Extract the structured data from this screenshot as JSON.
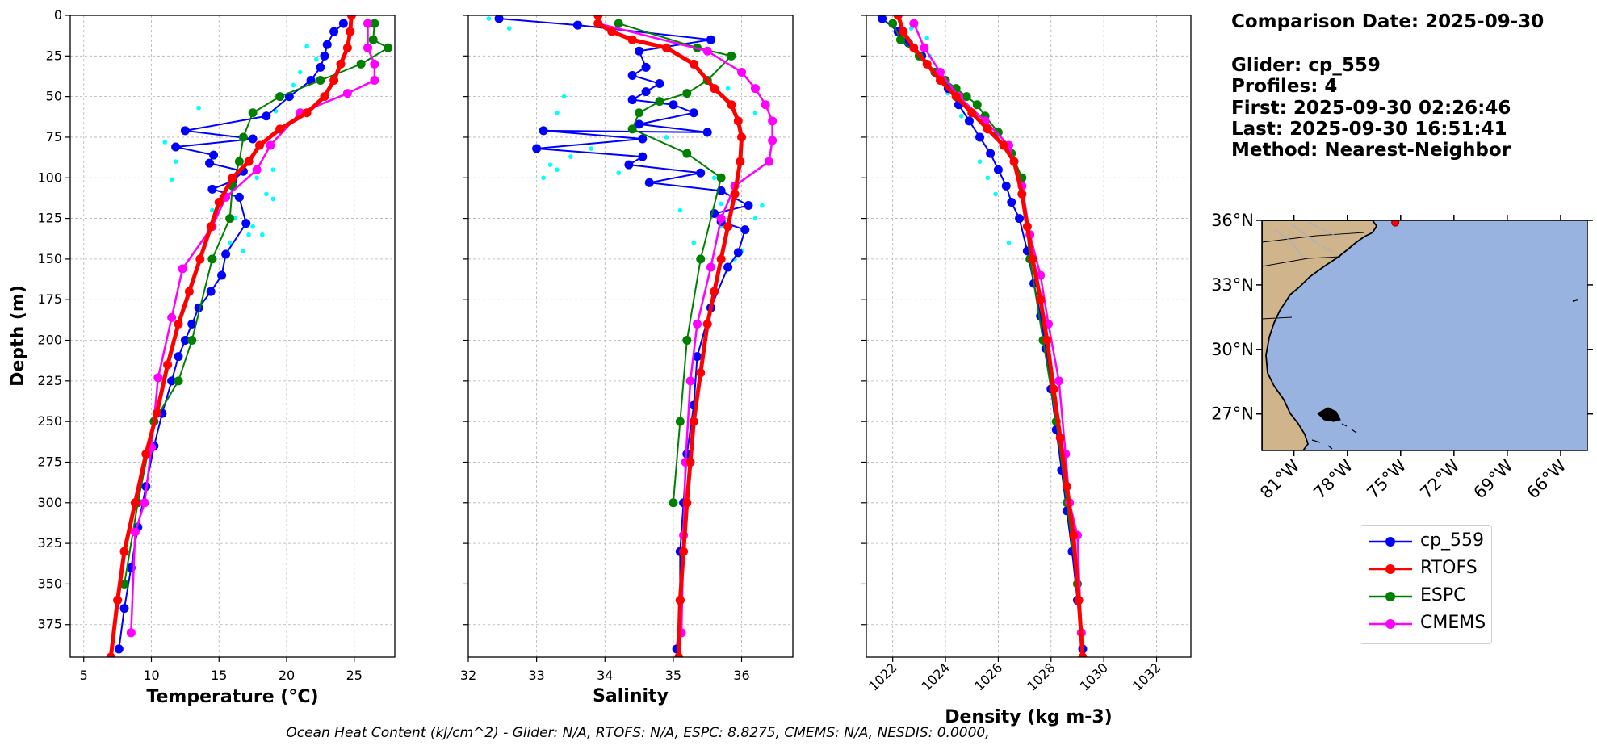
{
  "info": {
    "comparison_date": "Comparison Date: 2025-09-30",
    "glider": "Glider: cp_559",
    "profiles": "Profiles: 4",
    "first": "First: 2025-09-30 02:26:46",
    "last": "Last: 2025-09-30 16:51:41",
    "method": "Method: Nearest-Neighbor"
  },
  "footer": "Ocean Heat Content (kJ/cm^2) - Glider: N/A,  RTOFS: N/A,  ESPC: 8.8275,  CMEMS: N/A,  NESDIS: 0.0000,",
  "colors": {
    "glider": "#0000ff",
    "glider_raw": "#00ffff",
    "rtofs": "#ff0000",
    "espc": "#008000",
    "cmems": "#ff00ff",
    "ocean": "#99b3e0",
    "land": "#d0b48c"
  },
  "legend": [
    {
      "label": "cp_559",
      "color": "#0000ff"
    },
    {
      "label": "RTOFS",
      "color": "#ff0000"
    },
    {
      "label": "ESPC",
      "color": "#008000"
    },
    {
      "label": "CMEMS",
      "color": "#ff00ff"
    }
  ],
  "chart_data": [
    {
      "type": "line",
      "xlabel": "Temperature (°C)",
      "ylabel": "Depth (m)",
      "xlim": [
        4,
        28
      ],
      "ylim": [
        395,
        0
      ],
      "xticks": [
        5,
        10,
        15,
        20,
        25
      ],
      "yticks": [
        0,
        25,
        50,
        75,
        100,
        125,
        150,
        175,
        200,
        225,
        250,
        275,
        300,
        325,
        350,
        375
      ],
      "grid": true,
      "series": [
        {
          "name": "cp_559",
          "marker": true,
          "x": [
            24.2,
            23.5,
            23.0,
            22.8,
            22.5,
            21.8,
            20.2,
            18.5,
            12.5,
            17.5,
            11.8,
            14.6,
            14.3,
            16.8,
            16.0,
            14.5,
            16.5,
            17.0,
            15.5,
            15.2,
            14.4,
            13.5,
            13.0,
            12.5,
            12.0,
            11.5,
            10.8,
            10.2,
            9.6,
            9.0,
            8.5,
            8.0,
            7.6
          ],
          "y": [
            5,
            10,
            18,
            25,
            32,
            40,
            50,
            62,
            71,
            76,
            81,
            86,
            91,
            96,
            102,
            107,
            112,
            128,
            147,
            160,
            170,
            180,
            190,
            200,
            210,
            225,
            245,
            265,
            290,
            315,
            340,
            365,
            390
          ]
        },
        {
          "name": "RTOFS",
          "marker": true,
          "x": [
            24.8,
            24.7,
            24.5,
            24.0,
            23.5,
            22.8,
            21.5,
            19.5,
            18.0,
            17.2,
            16.0,
            15.0,
            14.4,
            13.6,
            12.8,
            12.0,
            11.2,
            10.4,
            9.6,
            8.8,
            8.0,
            7.5,
            7.0
          ],
          "y": [
            0,
            10,
            20,
            30,
            40,
            50,
            60,
            70,
            80,
            90,
            100,
            115,
            130,
            150,
            170,
            190,
            215,
            245,
            270,
            300,
            330,
            360,
            395
          ]
        },
        {
          "name": "ESPC",
          "marker": true,
          "x": [
            26.5,
            26.4,
            27.5,
            25.5,
            22.5,
            19.5,
            17.5,
            16.8,
            16.5,
            16.0,
            15.8,
            14.5,
            13.0,
            12.0,
            10.2,
            9.0,
            8.0
          ],
          "y": [
            5,
            15,
            20,
            30,
            40,
            50,
            60,
            75,
            90,
            105,
            125,
            150,
            200,
            225,
            250,
            300,
            350
          ]
        },
        {
          "name": "CMEMS",
          "marker": true,
          "x": [
            26.0,
            26.0,
            26.5,
            26.5,
            24.5,
            21.0,
            18.8,
            17.8,
            15.5,
            14.5,
            12.3,
            11.5,
            10.5,
            10.0,
            9.5,
            8.8,
            8.5
          ],
          "y": [
            5,
            20,
            30,
            40,
            48,
            60,
            80,
            95,
            112,
            130,
            156,
            186,
            223,
            266,
            300,
            318,
            380
          ]
        },
        {
          "name": "cp_559 raw",
          "marker": true,
          "line": false,
          "x": [
            21.5,
            22.2,
            21.0,
            20.5,
            19.2,
            13.5,
            11.0,
            11.8,
            11.5,
            18.0,
            19.0,
            18.5,
            17.8,
            19.0,
            14.5,
            16.2,
            17.5,
            18.2,
            15.8,
            16.8,
            17.2
          ],
          "y": [
            19,
            27,
            35,
            43,
            59,
            57,
            78,
            90,
            101,
            80,
            95,
            110,
            100,
            113,
            120,
            125,
            130,
            135,
            140,
            145,
            135
          ]
        }
      ]
    },
    {
      "type": "line",
      "xlabel": "Salinity",
      "xlim": [
        32,
        36.75
      ],
      "ylim": [
        395,
        0
      ],
      "xticks": [
        32,
        33,
        34,
        35,
        36
      ],
      "grid": true,
      "series": [
        {
          "name": "cp_559",
          "marker": true,
          "x": [
            32.45,
            33.6,
            35.55,
            34.5,
            34.6,
            34.4,
            34.8,
            34.6,
            34.4,
            35.0,
            35.3,
            34.5,
            35.5,
            33.1,
            34.55,
            33.0,
            34.55,
            34.35,
            35.4,
            34.65,
            35.7,
            36.1,
            35.6,
            35.7,
            36.05,
            35.95,
            35.8,
            35.55,
            35.35,
            35.3,
            35.2,
            35.15,
            35.1,
            35.1,
            35.05
          ],
          "y": [
            2,
            6,
            15,
            22,
            32,
            37,
            42,
            47,
            52,
            55,
            60,
            67,
            72,
            71,
            76,
            82,
            87,
            92,
            97,
            103,
            108,
            117,
            122,
            127,
            132,
            146,
            155,
            180,
            210,
            240,
            270,
            300,
            330,
            360,
            390
          ]
        },
        {
          "name": "RTOFS",
          "marker": true,
          "x": [
            33.9,
            33.9,
            34.1,
            34.4,
            34.9,
            35.3,
            35.6,
            35.85,
            35.95,
            36.0,
            35.98,
            35.9,
            35.8,
            35.7,
            35.6,
            35.5,
            35.4,
            35.3,
            35.25,
            35.2,
            35.15,
            35.1,
            35.08
          ],
          "y": [
            0,
            5,
            10,
            15,
            20,
            30,
            45,
            55,
            65,
            75,
            90,
            110,
            130,
            150,
            170,
            190,
            220,
            250,
            275,
            300,
            330,
            360,
            395
          ]
        },
        {
          "name": "ESPC",
          "marker": true,
          "x": [
            34.2,
            35.35,
            35.85,
            35.5,
            35.2,
            34.8,
            34.5,
            34.4,
            35.2,
            35.7,
            35.4,
            35.2,
            35.1,
            35.0
          ],
          "y": [
            5,
            20,
            25,
            40,
            48,
            53,
            60,
            70,
            85,
            100,
            150,
            200,
            250,
            300
          ]
        },
        {
          "name": "CMEMS",
          "marker": true,
          "x": [
            33.9,
            35.5,
            36.0,
            36.2,
            36.35,
            36.45,
            36.45,
            36.4,
            35.9,
            35.7,
            35.55,
            35.35,
            35.25,
            35.18,
            35.15,
            35.12
          ],
          "y": [
            5,
            22,
            35,
            45,
            55,
            65,
            77,
            90,
            105,
            125,
            155,
            190,
            225,
            275,
            320,
            380
          ]
        },
        {
          "name": "cp_559 raw",
          "marker": true,
          "line": false,
          "x": [
            32.3,
            32.6,
            33.4,
            35.8,
            36.2,
            33.8,
            33.5,
            34.9,
            33.2,
            33.3,
            34.2,
            33.3,
            33.1,
            35.6,
            35.7,
            36.3,
            36.2,
            35.7,
            35.3,
            35.1,
            36.0,
            35.9,
            35.8
          ],
          "y": [
            2,
            8,
            50,
            45,
            60,
            82,
            87,
            75,
            92,
            95,
            97,
            60,
            100,
            100,
            116,
            117,
            125,
            130,
            140,
            120,
            145,
            150,
            155
          ]
        }
      ]
    },
    {
      "type": "line",
      "xlabel": "Density (kg m-3)",
      "xlim": [
        1021,
        1033.3
      ],
      "ylim": [
        395,
        0
      ],
      "xticks": [
        1022,
        1024,
        1026,
        1028,
        1030,
        1032
      ],
      "grid": true,
      "series": [
        {
          "name": "cp_559",
          "marker": true,
          "x": [
            1021.6,
            1022.2,
            1022.6,
            1023.1,
            1023.6,
            1024.1,
            1024.5,
            1024.9,
            1025.3,
            1025.7,
            1026.0,
            1026.3,
            1026.5,
            1026.8,
            1027.1,
            1027.35,
            1027.6,
            1027.8,
            1028.0,
            1028.2,
            1028.4,
            1028.6,
            1028.8,
            1029.0,
            1029.2
          ],
          "y": [
            2,
            10,
            17,
            25,
            35,
            45,
            55,
            65,
            75,
            85,
            95,
            105,
            115,
            125,
            145,
            165,
            185,
            205,
            230,
            255,
            280,
            305,
            330,
            360,
            390
          ]
        },
        {
          "name": "RTOFS",
          "marker": true,
          "x": [
            1022.2,
            1022.4,
            1022.8,
            1023.3,
            1023.8,
            1024.4,
            1025.0,
            1025.6,
            1026.2,
            1026.6,
            1026.9,
            1027.1,
            1027.3,
            1027.6,
            1027.85,
            1028.1,
            1028.35,
            1028.6,
            1028.85,
            1029.05,
            1029.2
          ],
          "y": [
            0,
            10,
            20,
            30,
            40,
            50,
            60,
            70,
            80,
            90,
            110,
            130,
            150,
            175,
            200,
            230,
            260,
            290,
            320,
            360,
            395
          ]
        },
        {
          "name": "ESPC",
          "marker": true,
          "x": [
            1022.0,
            1022.3,
            1023.0,
            1023.6,
            1024.0,
            1024.4,
            1024.8,
            1025.2,
            1025.5,
            1026.0,
            1026.5,
            1026.9,
            1027.2,
            1027.7,
            1028.2,
            1028.6,
            1029.0
          ],
          "y": [
            5,
            15,
            25,
            35,
            40,
            45,
            50,
            55,
            62,
            72,
            85,
            100,
            150,
            200,
            250,
            300,
            350
          ]
        },
        {
          "name": "CMEMS",
          "marker": true,
          "x": [
            1022.8,
            1023.2,
            1023.8,
            1024.5,
            1025.5,
            1026.4,
            1026.9,
            1027.2,
            1027.6,
            1027.9,
            1028.3,
            1028.55,
            1028.7,
            1029.0,
            1029.15
          ],
          "y": [
            5,
            20,
            35,
            50,
            65,
            80,
            105,
            135,
            160,
            190,
            225,
            270,
            300,
            320,
            380
          ]
        },
        {
          "name": "cp_559 raw",
          "marker": true,
          "line": false,
          "x": [
            1022.7,
            1023.3,
            1023.4,
            1023.9,
            1024.1,
            1024.5,
            1024.6,
            1025.3,
            1025.6,
            1025.9,
            1026.4
          ],
          "y": [
            8,
            14,
            25,
            40,
            48,
            55,
            62,
            90,
            100,
            110,
            140
          ]
        }
      ]
    },
    {
      "type": "map",
      "lon_range": [
        -82.8,
        -64.5
      ],
      "lat_range": [
        25.3,
        36.0
      ],
      "xticks": [
        "81°W",
        "78°W",
        "75°W",
        "72°W",
        "69°W",
        "66°W"
      ],
      "xtick_values": [
        -81,
        -78,
        -75,
        -72,
        -69,
        -66
      ],
      "yticks": [
        "36°N",
        "33°N",
        "30°N",
        "27°N"
      ],
      "ytick_values": [
        36,
        33,
        30,
        27
      ],
      "glider_position": {
        "lon": -75.3,
        "lat": 35.9
      }
    }
  ]
}
